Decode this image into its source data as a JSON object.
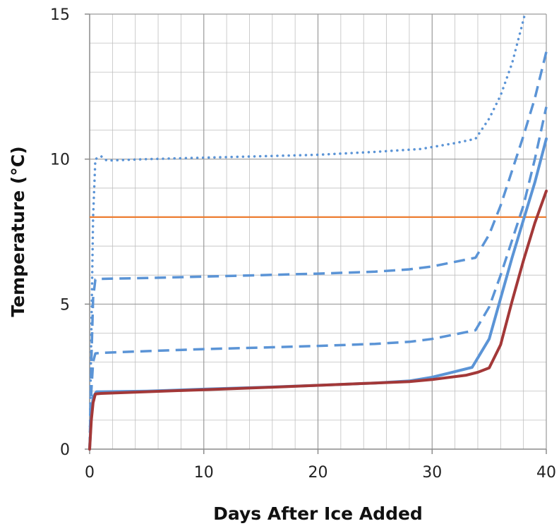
{
  "chart_data": {
    "type": "line",
    "title": "",
    "xlabel": "Days After Ice Added",
    "ylabel": "Temperature (°C)",
    "xlim": [
      0,
      40
    ],
    "ylim": [
      0,
      15
    ],
    "x_ticks": [
      0,
      10,
      20,
      30,
      40
    ],
    "y_ticks": [
      0,
      5,
      10,
      15
    ],
    "x_minor_step": 2,
    "y_minor_step": 1,
    "grid": true,
    "legend": "none",
    "colors": {
      "blue": "#5b94d6",
      "orange": "#ed7d31",
      "dark_red": "#a33838",
      "grid": "#bfbfbf",
      "axis": "#8c8c8c"
    },
    "series": [
      {
        "style": "dotted",
        "color": "#5b94d6",
        "points": [
          [
            0,
            0
          ],
          [
            0.15,
            4
          ],
          [
            0.3,
            8
          ],
          [
            0.5,
            10.0
          ],
          [
            1,
            10.1
          ],
          [
            1.5,
            9.95
          ],
          [
            5,
            10.0
          ],
          [
            10,
            10.05
          ],
          [
            15,
            10.1
          ],
          [
            20,
            10.15
          ],
          [
            25,
            10.25
          ],
          [
            29,
            10.35
          ],
          [
            32,
            10.55
          ],
          [
            33.8,
            10.7
          ],
          [
            35,
            11.4
          ],
          [
            36,
            12.2
          ],
          [
            37,
            13.3
          ],
          [
            38,
            14.8
          ],
          [
            38.5,
            15.6
          ]
        ]
      },
      {
        "style": "dashed",
        "color": "#5b94d6",
        "points": [
          [
            0,
            0
          ],
          [
            0.15,
            3
          ],
          [
            0.3,
            5.2
          ],
          [
            0.5,
            5.85
          ],
          [
            1,
            5.87
          ],
          [
            5,
            5.9
          ],
          [
            10,
            5.95
          ],
          [
            15,
            6.0
          ],
          [
            20,
            6.05
          ],
          [
            25,
            6.12
          ],
          [
            28,
            6.2
          ],
          [
            30,
            6.3
          ],
          [
            33.8,
            6.6
          ],
          [
            35,
            7.4
          ],
          [
            36,
            8.4
          ],
          [
            37,
            9.6
          ],
          [
            38,
            10.8
          ],
          [
            39,
            12.1
          ],
          [
            40,
            13.7
          ]
        ]
      },
      {
        "style": "dashed",
        "color": "#5b94d6",
        "points": [
          [
            0,
            0
          ],
          [
            0.15,
            2
          ],
          [
            0.3,
            3.0
          ],
          [
            0.5,
            3.3
          ],
          [
            1,
            3.32
          ],
          [
            5,
            3.38
          ],
          [
            10,
            3.45
          ],
          [
            15,
            3.5
          ],
          [
            20,
            3.56
          ],
          [
            25,
            3.63
          ],
          [
            28,
            3.7
          ],
          [
            30,
            3.8
          ],
          [
            33.8,
            4.1
          ],
          [
            35,
            4.9
          ],
          [
            36,
            6.0
          ],
          [
            37,
            7.2
          ],
          [
            38,
            8.4
          ],
          [
            39,
            10.0
          ],
          [
            40,
            11.8
          ]
        ]
      },
      {
        "style": "solid",
        "color": "#5b94d6",
        "points": [
          [
            0,
            0
          ],
          [
            0.15,
            1.2
          ],
          [
            0.3,
            1.8
          ],
          [
            0.6,
            1.98
          ],
          [
            1,
            1.98
          ],
          [
            5,
            2.0
          ],
          [
            10,
            2.07
          ],
          [
            15,
            2.13
          ],
          [
            20,
            2.2
          ],
          [
            25,
            2.28
          ],
          [
            28,
            2.35
          ],
          [
            30,
            2.48
          ],
          [
            33.5,
            2.82
          ],
          [
            35,
            3.8
          ],
          [
            36,
            5.2
          ],
          [
            37,
            6.6
          ],
          [
            38,
            7.9
          ],
          [
            39,
            9.2
          ],
          [
            40,
            10.7
          ]
        ]
      },
      {
        "style": "solid",
        "color": "#a33838",
        "points": [
          [
            0,
            0
          ],
          [
            0.15,
            1.0
          ],
          [
            0.3,
            1.6
          ],
          [
            0.5,
            1.9
          ],
          [
            1,
            1.92
          ],
          [
            5,
            1.98
          ],
          [
            10,
            2.05
          ],
          [
            15,
            2.12
          ],
          [
            20,
            2.2
          ],
          [
            25,
            2.28
          ],
          [
            28,
            2.33
          ],
          [
            30,
            2.4
          ],
          [
            33,
            2.55
          ],
          [
            34,
            2.65
          ],
          [
            35,
            2.8
          ],
          [
            36,
            3.6
          ],
          [
            37,
            5.1
          ],
          [
            38,
            6.5
          ],
          [
            39,
            7.8
          ],
          [
            40,
            8.9
          ]
        ]
      },
      {
        "style": "solid",
        "color": "#ed7d31",
        "points": [
          [
            0,
            8
          ],
          [
            40,
            8
          ]
        ]
      }
    ]
  }
}
